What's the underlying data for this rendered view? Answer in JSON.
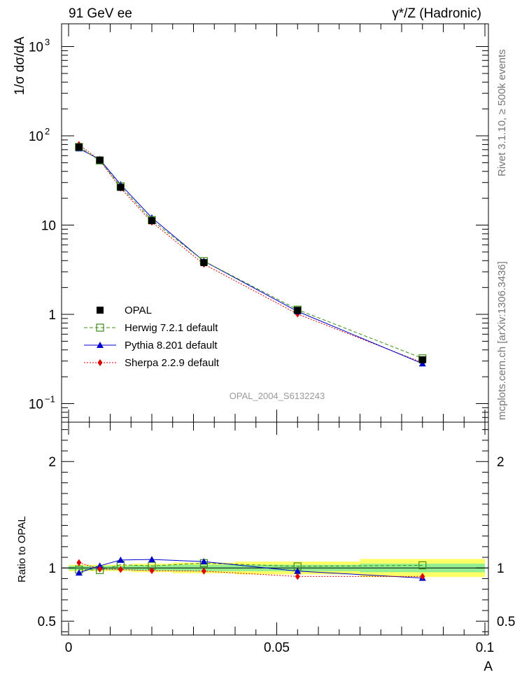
{
  "header": {
    "left": "91 GeV ee",
    "right": "γ*/Z (Hadronic)"
  },
  "side_text": {
    "top": "Rivet 3.1.10, ≥ 500k events",
    "bottom": "mcplots.cern.ch [arXiv:1306.3436]"
  },
  "watermark": "OPAL_2004_S6132243",
  "chart_data": [
    {
      "type": "line",
      "ylabel": "1/σ dσ/dA",
      "xlabel": "A",
      "yscale": "log",
      "ylim": [
        0.062,
        1800
      ],
      "xlim": [
        0,
        0.1
      ],
      "yticks": [
        {
          "value": 0.1,
          "base": "10",
          "exp": "−1"
        },
        {
          "value": 1,
          "base": "1",
          "exp": ""
        },
        {
          "value": 10,
          "base": "10",
          "exp": ""
        },
        {
          "value": 100,
          "base": "10",
          "exp": "2"
        },
        {
          "value": 1000,
          "base": "10",
          "exp": "3"
        }
      ],
      "x": [
        0.0025,
        0.0075,
        0.0125,
        0.02,
        0.0325,
        0.055,
        0.085
      ],
      "series": [
        {
          "name": "OPAL",
          "values": [
            75,
            53.5,
            26.5,
            11.2,
            3.8,
            1.11,
            0.31
          ],
          "color": "#000000",
          "marker": "square",
          "style": "none"
        },
        {
          "name": "Herwig 7.2.1 default",
          "values": [
            75,
            53,
            27.2,
            11.4,
            3.95,
            1.13,
            0.322
          ],
          "color": "#3c8c14",
          "marker": "open-square",
          "style": "dashed"
        },
        {
          "name": "Pythia 8.201 default",
          "values": [
            72,
            54.5,
            28.5,
            12.1,
            3.95,
            1.08,
            0.281
          ],
          "color": "#0000cc",
          "marker": "triangle",
          "style": "solid"
        },
        {
          "name": "Sherpa 2.2.9 default",
          "values": [
            80,
            53,
            26,
            10.8,
            3.65,
            1.01,
            0.288
          ],
          "color": "#dd0000",
          "marker": "diamond",
          "style": "dotted"
        }
      ]
    },
    {
      "type": "line",
      "ylabel": "Ratio to OPAL",
      "xlabel": "A",
      "ylim": [
        0.37,
        2.37
      ],
      "xlim": [
        0,
        0.1
      ],
      "yticks": [
        {
          "value": 0.5,
          "label": "0.5"
        },
        {
          "value": 1,
          "label": "1"
        },
        {
          "value": 2,
          "label": "2"
        }
      ],
      "xticks": [
        {
          "value": 0,
          "label": "0"
        },
        {
          "value": 0.05,
          "label": "0.05"
        },
        {
          "value": 0.1,
          "label": "0.1"
        }
      ],
      "x": [
        0.0025,
        0.0075,
        0.0125,
        0.02,
        0.0325,
        0.055,
        0.085
      ],
      "bins": [
        [
          0,
          0.005
        ],
        [
          0.005,
          0.01
        ],
        [
          0.01,
          0.015
        ],
        [
          0.015,
          0.025
        ],
        [
          0.025,
          0.04
        ],
        [
          0.04,
          0.07
        ],
        [
          0.07,
          0.1
        ]
      ],
      "band_stat": [
        0.02,
        0.02,
        0.02,
        0.025,
        0.03,
        0.03,
        0.04
      ],
      "band_total": [
        0.03,
        0.03,
        0.03,
        0.04,
        0.05,
        0.06,
        0.085
      ],
      "band_colors": {
        "inner": "#90ee90",
        "outer": "#ffff66"
      },
      "series": [
        {
          "name": "Herwig 7.2.1 default",
          "values": [
            0.985,
            0.98,
            1.03,
            1.02,
            1.045,
            1.015,
            1.025
          ],
          "color": "#3c8c14",
          "marker": "open-square",
          "style": "dashed"
        },
        {
          "name": "Pythia 8.201 default",
          "values": [
            0.955,
            1.02,
            1.075,
            1.08,
            1.06,
            0.97,
            0.905
          ],
          "color": "#0000cc",
          "marker": "triangle",
          "style": "solid"
        },
        {
          "name": "Sherpa 2.2.9 default",
          "values": [
            1.05,
            0.99,
            0.985,
            0.975,
            0.97,
            0.92,
            0.92
          ],
          "color": "#dd0000",
          "marker": "diamond",
          "style": "dotted"
        }
      ]
    }
  ]
}
